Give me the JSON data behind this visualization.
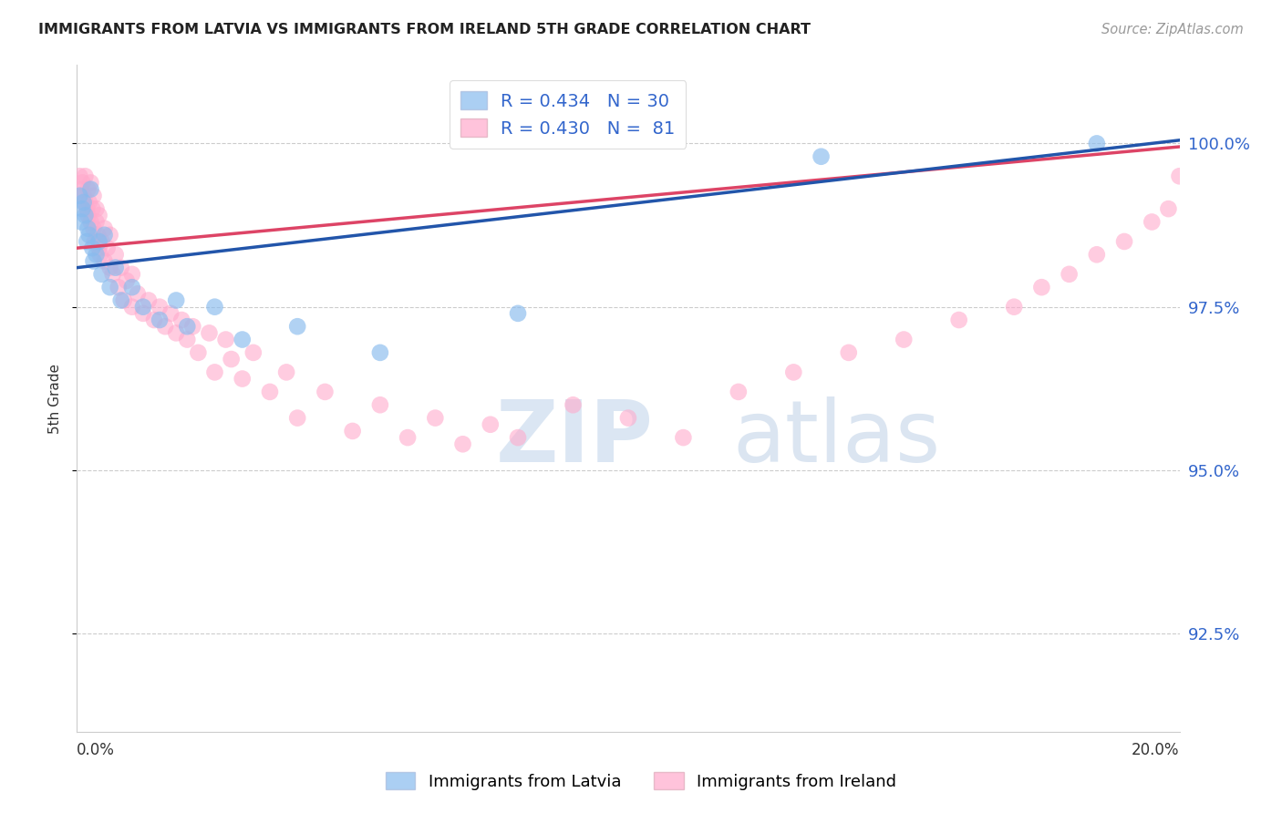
{
  "title": "IMMIGRANTS FROM LATVIA VS IMMIGRANTS FROM IRELAND 5TH GRADE CORRELATION CHART",
  "source": "Source: ZipAtlas.com",
  "ylabel": "5th Grade",
  "xlim": [
    0.0,
    20.0
  ],
  "ylim": [
    91.0,
    101.2
  ],
  "yticks": [
    92.5,
    95.0,
    97.5,
    100.0
  ],
  "ytick_labels": [
    "92.5%",
    "95.0%",
    "97.5%",
    "100.0%"
  ],
  "background_color": "#ffffff",
  "watermark_zip": "ZIP",
  "watermark_atlas": "atlas",
  "blue_color": "#88BBEE",
  "pink_color": "#FFAACC",
  "blue_line_color": "#2255AA",
  "pink_line_color": "#DD4466",
  "legend_texts": [
    "R = 0.434   N = 30",
    "R = 0.430   N =  81"
  ],
  "bottom_legend": [
    "Immigrants from Latvia",
    "Immigrants from Ireland"
  ],
  "blue_x": [
    0.05,
    0.08,
    0.1,
    0.12,
    0.15,
    0.18,
    0.2,
    0.22,
    0.25,
    0.28,
    0.3,
    0.35,
    0.4,
    0.45,
    0.5,
    0.6,
    0.7,
    0.8,
    1.0,
    1.2,
    1.5,
    1.8,
    2.0,
    2.5,
    3.0,
    4.0,
    5.5,
    8.0,
    13.5,
    18.5
  ],
  "blue_y": [
    99.2,
    98.8,
    99.0,
    99.1,
    98.9,
    98.5,
    98.7,
    98.6,
    99.3,
    98.4,
    98.2,
    98.3,
    98.5,
    98.0,
    98.6,
    97.8,
    98.1,
    97.6,
    97.8,
    97.5,
    97.3,
    97.6,
    97.2,
    97.5,
    97.0,
    97.2,
    96.8,
    97.4,
    99.8,
    100.0
  ],
  "pink_x": [
    0.05,
    0.08,
    0.1,
    0.12,
    0.15,
    0.15,
    0.18,
    0.2,
    0.2,
    0.22,
    0.25,
    0.25,
    0.28,
    0.3,
    0.3,
    0.32,
    0.35,
    0.35,
    0.38,
    0.4,
    0.4,
    0.42,
    0.45,
    0.5,
    0.5,
    0.55,
    0.6,
    0.6,
    0.65,
    0.7,
    0.75,
    0.8,
    0.85,
    0.9,
    1.0,
    1.0,
    1.1,
    1.2,
    1.3,
    1.4,
    1.5,
    1.6,
    1.7,
    1.8,
    1.9,
    2.0,
    2.1,
    2.2,
    2.4,
    2.5,
    2.7,
    2.8,
    3.0,
    3.2,
    3.5,
    3.8,
    4.0,
    4.5,
    5.0,
    5.5,
    6.0,
    6.5,
    7.0,
    7.5,
    8.0,
    9.0,
    10.0,
    11.0,
    12.0,
    13.0,
    14.0,
    15.0,
    16.0,
    17.0,
    17.5,
    18.0,
    18.5,
    19.0,
    19.5,
    19.8,
    20.0
  ],
  "pink_y": [
    99.5,
    99.3,
    99.4,
    99.2,
    99.5,
    99.1,
    99.0,
    99.3,
    98.9,
    99.1,
    99.4,
    98.8,
    99.0,
    98.7,
    99.2,
    98.5,
    98.8,
    99.0,
    98.6,
    98.4,
    98.9,
    98.3,
    98.5,
    98.7,
    98.2,
    98.4,
    98.1,
    98.6,
    98.0,
    98.3,
    97.8,
    98.1,
    97.6,
    97.9,
    97.5,
    98.0,
    97.7,
    97.4,
    97.6,
    97.3,
    97.5,
    97.2,
    97.4,
    97.1,
    97.3,
    97.0,
    97.2,
    96.8,
    97.1,
    96.5,
    97.0,
    96.7,
    96.4,
    96.8,
    96.2,
    96.5,
    95.8,
    96.2,
    95.6,
    96.0,
    95.5,
    95.8,
    95.4,
    95.7,
    95.5,
    96.0,
    95.8,
    95.5,
    96.2,
    96.5,
    96.8,
    97.0,
    97.3,
    97.5,
    97.8,
    98.0,
    98.3,
    98.5,
    98.8,
    99.0,
    99.5
  ]
}
